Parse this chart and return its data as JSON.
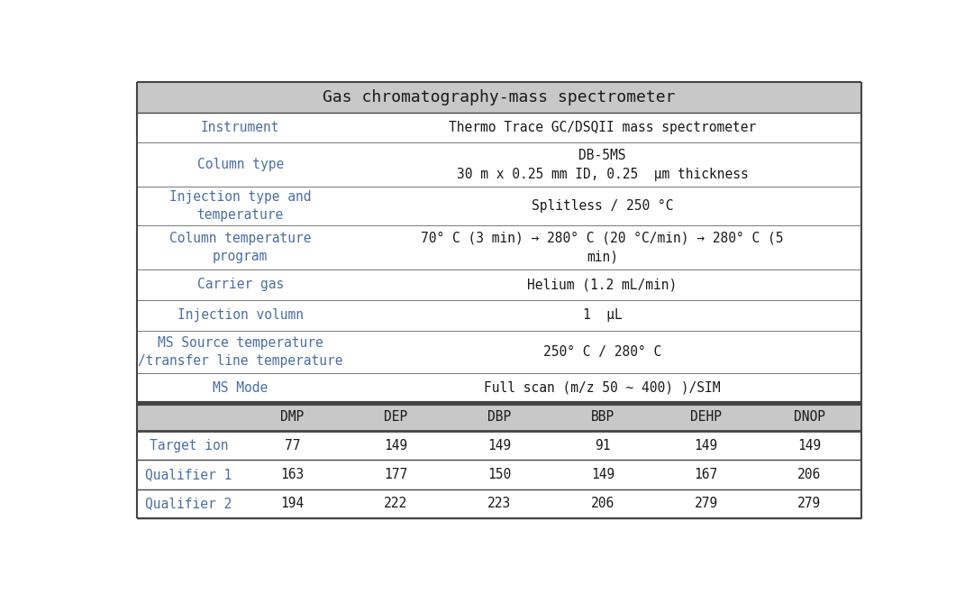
{
  "title": "Gas chromatography-mass spectrometer",
  "title_bg": "#c8c8c8",
  "header_bg": "#c8c8c8",
  "text_color_blue": "#4a6fa5",
  "text_color_dark": "#1a1a1a",
  "border_color": "#444444",
  "upper_rows": [
    {
      "label": "Instrument",
      "value_lines": [
        "Thermo Trace GC/DSQII mass spectrometer"
      ],
      "label_valign": 0.5
    },
    {
      "label": "Column type",
      "value_lines": [
        "DB-5MS",
        "30 m x 0.25 mm ID, 0.25  μm thickness"
      ],
      "label_valign": 0.5
    },
    {
      "label": "Injection type and\ntemperature",
      "value_lines": [
        "Splitless / 250 °C"
      ],
      "label_valign": 0.5
    },
    {
      "label": "Column temperature\nprogram",
      "value_lines": [
        "70° C (3 min) → 280° C (20 °C/min) → 280° C (5",
        "min)"
      ],
      "label_valign": 0.5
    },
    {
      "label": "Carrier gas",
      "value_lines": [
        "Helium (1.2 mL/min)"
      ],
      "label_valign": 0.5
    },
    {
      "label": "Injection volumn",
      "value_lines": [
        "1  μL"
      ],
      "label_valign": 0.5
    },
    {
      "label": "MS Source temperature\n/transfer line temperature",
      "value_lines": [
        "250° C / 280° C"
      ],
      "label_valign": 0.5
    },
    {
      "label": "MS Mode",
      "value_lines": [
        "Full scan (m/z 50 ~ 400) )/SIM"
      ],
      "label_valign": 0.5
    }
  ],
  "lower_headers": [
    "",
    "DMP",
    "DEP",
    "DBP",
    "BBP",
    "DEHP",
    "DNOP"
  ],
  "lower_rows": [
    {
      "label": "Target ion",
      "values": [
        "77",
        "149",
        "149",
        "91",
        "149",
        "149"
      ]
    },
    {
      "label": "Qualifier 1",
      "values": [
        "163",
        "177",
        "150",
        "149",
        "167",
        "206"
      ]
    },
    {
      "label": "Qualifier 2",
      "values": [
        "194",
        "222",
        "223",
        "206",
        "279",
        "279"
      ]
    }
  ],
  "font_size_title": 13,
  "font_size_body": 10.5
}
